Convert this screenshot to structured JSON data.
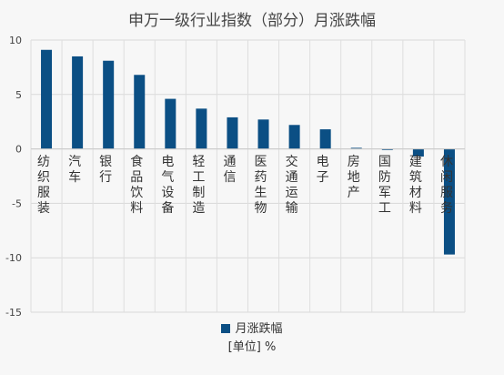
{
  "chart_data": {
    "type": "bar",
    "title": "申万一级行业指数（部分）月涨跌幅",
    "categories": [
      "纺织服装",
      "汽车",
      "银行",
      "食品饮料",
      "电气设备",
      "轻工制造",
      "通信",
      "医药生物",
      "交通运输",
      "电子",
      "房地产",
      "国防军工",
      "建筑材料",
      "休闲服务"
    ],
    "series": [
      {
        "name": "月涨跌幅",
        "values": [
          9.1,
          8.5,
          8.1,
          6.8,
          4.6,
          3.7,
          2.9,
          2.7,
          2.2,
          1.8,
          0.1,
          -0.1,
          -0.7,
          -9.7
        ],
        "color": "#0b4f84"
      }
    ],
    "ylim": [
      -15,
      10
    ],
    "yticks": [
      10,
      5,
      0,
      -5,
      -10,
      -15
    ],
    "grid": true,
    "legend_position": "bottom",
    "unit_note": "[单位] %"
  }
}
